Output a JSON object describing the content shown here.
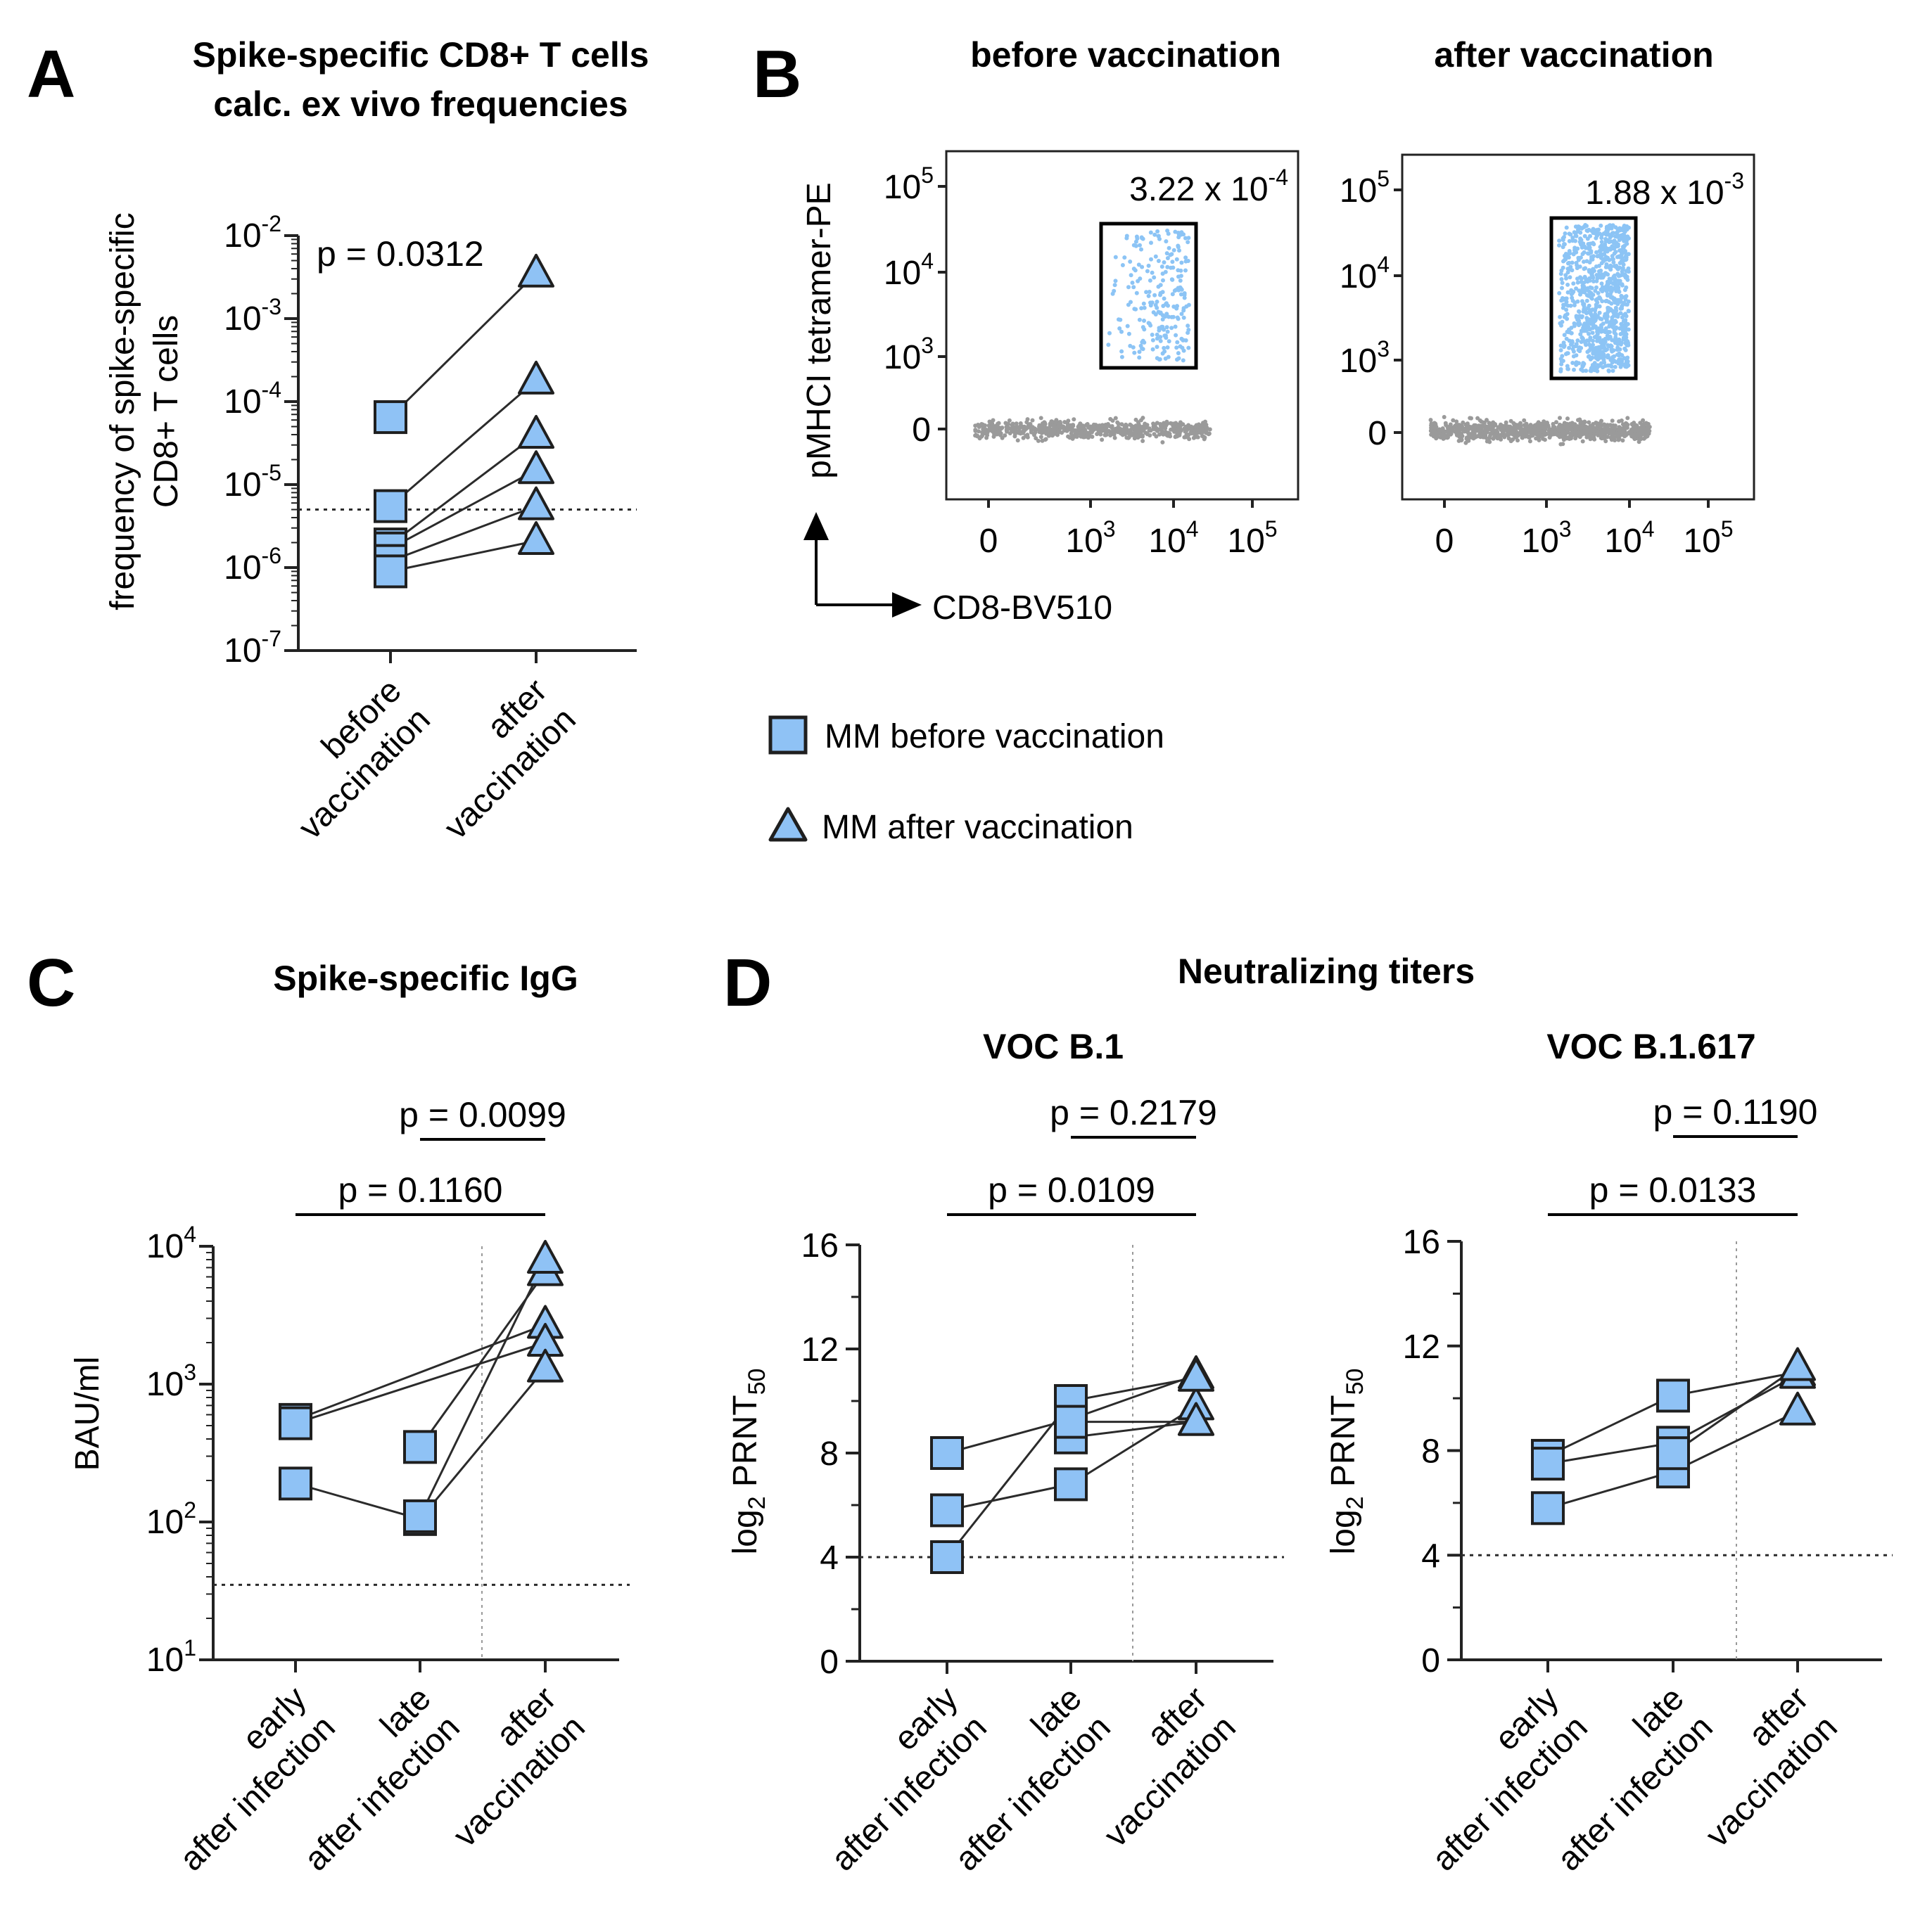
{
  "colors": {
    "marker_fill": "#8fc2f5",
    "marker_stroke": "#1f1f1f",
    "line": "#2b2b2b",
    "flow_gate": "#8cc4f5",
    "flow_neg": "#9a9a9a"
  },
  "panel_a": {
    "letter": "A",
    "title_line1": "Spike-specific CD8+ T cells",
    "title_line2": "calc. ex vivo frequencies",
    "ylabel_line1": "frequency of spike-specific",
    "ylabel_line2": "CD8+ T cells",
    "p_value": "p = 0.0312"
  },
  "panel_b": {
    "letter": "B",
    "title_before": "before vaccination",
    "title_after": "after vaccination",
    "freq_before_base": "3.22 x 10",
    "freq_before_exp": "-4",
    "freq_after_base": "1.88 x 10",
    "freq_after_exp": "-3",
    "ylabel": "pMHCI tetramer-PE",
    "xlabel": "CD8-BV510",
    "tick_zero": "0",
    "tick_base": "10",
    "tick_exp_3": "3",
    "tick_exp_4": "4",
    "tick_exp_5": "5"
  },
  "legend": {
    "before": "MM  before vaccination",
    "after": "MM  after vaccination"
  },
  "panel_c": {
    "letter": "C",
    "title": "Spike-specific IgG",
    "ylabel": "BAU/ml",
    "p_top": "p = 0.0099",
    "p_bottom": "p = 0.1160"
  },
  "panel_d": {
    "letter": "D",
    "title": "Neutralizing titers",
    "sub1": "VOC B.1",
    "sub2": "VOC B.1.617",
    "ylabel_main": "log",
    "ylabel_sub2": "2",
    "ylabel_rest": " PRNT",
    "ylabel_sub50": "50",
    "b1_p_top": "p = 0.2179",
    "b1_p_bottom": "p = 0.0109",
    "b1617_p_top": "p = 0.1190",
    "b1617_p_bottom": "p = 0.0133"
  },
  "chart_data": [
    {
      "type": "scatter",
      "panel": "A",
      "title": "Spike-specific CD8+ T cells calc. ex vivo frequencies",
      "ylabel": "frequency of spike-specific CD8+ T cells",
      "yscale": "log",
      "ylim": [
        1e-07,
        0.01
      ],
      "yticks": [
        {
          "base": "10",
          "exp": "-2"
        },
        {
          "base": "10",
          "exp": "-3"
        },
        {
          "base": "10",
          "exp": "-4"
        },
        {
          "base": "10",
          "exp": "-5"
        },
        {
          "base": "10",
          "exp": "-6"
        },
        {
          "base": "10",
          "exp": "-7"
        }
      ],
      "categories": [
        {
          "line1": "before",
          "line2": "vaccination"
        },
        {
          "line1": "after",
          "line2": "vaccination"
        }
      ],
      "threshold": 5e-06,
      "pairs": [
        {
          "before": 6.5e-05,
          "after": 0.0035
        },
        {
          "before": 5.5e-06,
          "after": 0.00018
        },
        {
          "before": 1.9e-06,
          "after": 4e-05
        },
        {
          "before": 1.7e-06,
          "after": 1.5e-05
        },
        {
          "before": 1.2e-06,
          "after": 5.5e-06
        },
        {
          "before": 9e-07,
          "after": 2.1e-06
        }
      ]
    },
    {
      "type": "scatter",
      "panel": "C",
      "title": "Spike-specific IgG",
      "ylabel": "BAU/ml",
      "yscale": "log",
      "ylim": [
        10,
        10000
      ],
      "yticks": [
        {
          "base": "10",
          "exp": "4"
        },
        {
          "base": "10",
          "exp": "3"
        },
        {
          "base": "10",
          "exp": "2"
        },
        {
          "base": "10",
          "exp": "1"
        }
      ],
      "categories": [
        {
          "line1": "early",
          "line2": "after infection"
        },
        {
          "line1": "late",
          "line2": "after infection"
        },
        {
          "line1": "after",
          "line2": "vaccination"
        }
      ],
      "threshold": 35,
      "series": [
        {
          "values": [
            550,
            null,
            2700
          ]
        },
        {
          "values": [
            520,
            null,
            2000
          ]
        },
        {
          "values": [
            190,
            105,
            1300
          ]
        },
        {
          "values": [
            null,
            350,
            6500
          ]
        },
        {
          "values": [
            null,
            110,
            8000
          ]
        }
      ],
      "brackets": [
        {
          "from": 1,
          "to": 2,
          "label": "p = 0.0099"
        },
        {
          "from": 0,
          "to": 2,
          "label": "p = 0.1160"
        }
      ]
    },
    {
      "type": "scatter",
      "panel": "D",
      "title": "VOC B.1",
      "ylabel": "log2 PRNT50",
      "ylim": [
        0,
        16
      ],
      "yticks": [
        "16",
        "12",
        "8",
        "4",
        "0"
      ],
      "categories": [
        {
          "line1": "early",
          "line2": "after infection"
        },
        {
          "line1": "late",
          "line2": "after infection"
        },
        {
          "line1": "after",
          "line2": "vaccination"
        }
      ],
      "threshold": 4,
      "series": [
        {
          "values": [
            8.0,
            9.3,
            11.0
          ]
        },
        {
          "values": [
            5.8,
            6.8,
            9.8
          ]
        },
        {
          "values": [
            4.0,
            10.0,
            10.9
          ]
        },
        {
          "values": [
            null,
            8.6,
            9.2
          ]
        },
        {
          "values": [
            null,
            9.2,
            9.2
          ]
        }
      ],
      "brackets": [
        {
          "from": 1,
          "to": 2,
          "label": "p = 0.2179"
        },
        {
          "from": 0,
          "to": 2,
          "label": "p = 0.0109"
        }
      ]
    },
    {
      "type": "scatter",
      "panel": "D",
      "title": "VOC B.1.617",
      "ylabel": "log2 PRNT50",
      "ylim": [
        0,
        16
      ],
      "yticks": [
        "16",
        "12",
        "8",
        "4",
        "0"
      ],
      "categories": [
        {
          "line1": "early",
          "line2": "after infection"
        },
        {
          "line1": "late",
          "line2": "after infection"
        },
        {
          "line1": "after",
          "line2": "vaccination"
        }
      ],
      "threshold": 4,
      "series": [
        {
          "values": [
            7.8,
            10.1,
            11.0
          ]
        },
        {
          "values": [
            7.5,
            8.3,
            10.9
          ]
        },
        {
          "values": [
            5.8,
            7.2,
            9.5
          ]
        },
        {
          "values": [
            null,
            7.9,
            11.2
          ]
        }
      ],
      "brackets": [
        {
          "from": 1,
          "to": 2,
          "label": "p = 0.1190"
        },
        {
          "from": 0,
          "to": 2,
          "label": "p = 0.0133"
        }
      ]
    }
  ]
}
